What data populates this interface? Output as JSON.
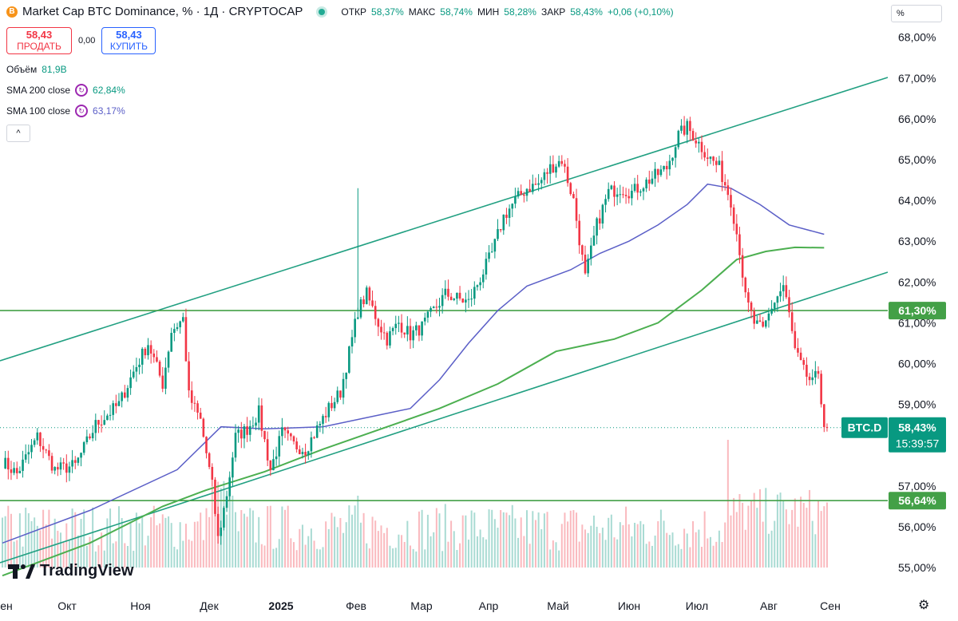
{
  "header": {
    "logo_letter": "B",
    "title": "Market Cap BTC Dominance, % · 1Д · CRYPTOCAP",
    "open_label": "ОТКР",
    "open_value": "58,37%",
    "high_label": "МАКС",
    "high_value": "58,74%",
    "low_label": "МИН",
    "low_value": "58,28%",
    "close_label": "ЗАКР",
    "close_value": "58,43%",
    "change": "+0,06 (+0,10%)"
  },
  "trade": {
    "sell_price": "58,43",
    "sell_label": "ПРОДАТЬ",
    "spread": "0,00",
    "buy_price": "58,43",
    "buy_label": "КУПИТЬ"
  },
  "indicators": {
    "volume_label": "Объём",
    "volume_value": "81,9B",
    "sma200_label": "SMA 200 close",
    "sma200_value": "62,84%",
    "sma100_label": "SMA 100 close",
    "sma100_value": "63,17%",
    "collapse_glyph": "^"
  },
  "scale_box": "%",
  "brand": "TradingView",
  "settings_icon": "⚙",
  "colors": {
    "up": "#089981",
    "down": "#f23645",
    "channel": "#22a082",
    "hline": "#43a047",
    "sma200": "#4caf50",
    "sma100": "#5b5fc7",
    "label_bg": "#089981"
  },
  "chart_data": {
    "type": "candlestick",
    "y_unit": "%",
    "ylim": [
      54.6,
      68.4
    ],
    "y_ticks": [
      "55,00%",
      "56,00%",
      "57,00%",
      "58,00%",
      "59,00%",
      "60,00%",
      "61,00%",
      "62,00%",
      "63,00%",
      "64,00%",
      "65,00%",
      "66,00%",
      "67,00%",
      "68,00%"
    ],
    "x_ticks": [
      "ен",
      "Окт",
      "Ноя",
      "Дек",
      "2025",
      "Фев",
      "Мар",
      "Апр",
      "Май",
      "Июн",
      "Июл",
      "Авг",
      "Сен"
    ],
    "price_tag": {
      "symbol": "BTC.D",
      "value": "58,43%",
      "countdown": "15:39:57",
      "level": 58.43
    },
    "horizontal_lines": [
      {
        "level": 61.3,
        "label": "61,30%"
      },
      {
        "level": 56.64,
        "label": "56,64%"
      }
    ],
    "last_close": 58.43,
    "volume_latest": "81,9B"
  }
}
